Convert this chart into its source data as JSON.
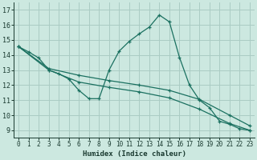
{
  "title": "",
  "xlabel": "Humidex (Indice chaleur)",
  "background_color": "#cce8e0",
  "grid_color": "#aaccc4",
  "line_color": "#1a7060",
  "xlim": [
    -0.5,
    23.5
  ],
  "ylim": [
    8.5,
    17.5
  ],
  "yticks": [
    9,
    10,
    11,
    12,
    13,
    14,
    15,
    16,
    17
  ],
  "xticks": [
    0,
    1,
    2,
    3,
    4,
    5,
    6,
    7,
    8,
    9,
    10,
    11,
    12,
    13,
    14,
    15,
    16,
    17,
    18,
    19,
    20,
    21,
    22,
    23
  ],
  "series": [
    {
      "x": [
        0,
        1,
        2,
        3,
        4,
        5,
        6,
        7,
        8,
        9,
        10,
        11,
        12,
        13,
        14,
        15,
        16,
        17,
        18,
        19,
        20,
        21,
        22,
        23
      ],
      "y": [
        14.55,
        14.2,
        13.8,
        13.0,
        12.75,
        12.4,
        11.65,
        11.1,
        11.1,
        13.0,
        14.25,
        14.9,
        15.4,
        15.85,
        16.65,
        16.2,
        13.85,
        12.0,
        11.0,
        10.5,
        9.6,
        9.4,
        9.1,
        9.0
      ]
    },
    {
      "x": [
        0,
        3,
        6,
        9,
        12,
        15,
        18,
        21,
        23
      ],
      "y": [
        14.55,
        13.1,
        12.65,
        12.3,
        12.0,
        11.65,
        11.05,
        10.0,
        9.3
      ]
    },
    {
      "x": [
        0,
        3,
        6,
        9,
        12,
        15,
        18,
        21,
        23
      ],
      "y": [
        14.55,
        13.0,
        12.2,
        11.85,
        11.55,
        11.15,
        10.4,
        9.45,
        9.0
      ]
    }
  ]
}
